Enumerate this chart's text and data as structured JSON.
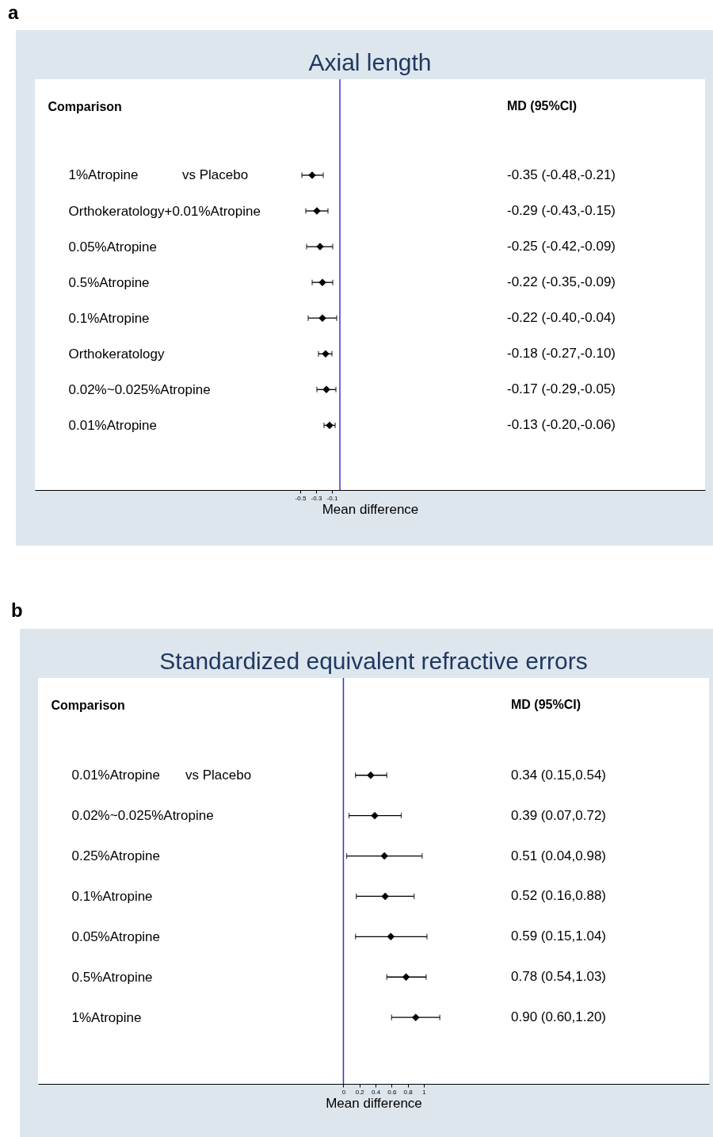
{
  "chart_data": [
    {
      "type": "scatter",
      "orientation": "horizontal",
      "title": "Axial length",
      "xlabel": "Mean difference",
      "ylabel": "Comparison",
      "color": "#000000",
      "marker": "diamond",
      "grid": false,
      "categories": [
        "1%Atropine",
        "Orthokeratology+0.01%Atropine",
        "0.05%Atropine",
        "0.5%Atropine",
        "0.1%Atropine",
        "Orthokeratology",
        "0.02%~0.025%Atropine",
        "0.01%Atropine"
      ],
      "values": [
        -0.35,
        -0.29,
        -0.25,
        -0.22,
        -0.22,
        -0.18,
        -0.17,
        -0.13
      ],
      "errors": [
        [
          -0.48,
          -0.21
        ],
        [
          -0.43,
          -0.15
        ],
        [
          -0.42,
          -0.09
        ],
        [
          -0.35,
          -0.09
        ],
        [
          -0.4,
          -0.04
        ],
        [
          -0.27,
          -0.1
        ],
        [
          -0.29,
          -0.05
        ],
        [
          -0.2,
          -0.06
        ]
      ],
      "xlim": [
        -3.85,
        4.61
      ],
      "xticks": [
        -0.5,
        -0.3,
        -0.1
      ],
      "ref_lines": [
        {
          "axis": "x",
          "value": 0,
          "color": "#3333cc"
        }
      ],
      "annotations": [
        "a",
        "MD (95%CI)",
        "vs Placebo",
        "-0.35 (-0.48,-0.21)",
        "-0.29 (-0.43,-0.15)",
        "-0.25 (-0.42,-0.09)",
        "-0.22 (-0.35,-0.09)",
        "-0.22 (-0.40,-0.04)",
        "-0.18 (-0.27,-0.10)",
        "-0.17 (-0.29,-0.05)",
        "-0.13 (-0.20,-0.06)"
      ]
    },
    {
      "type": "scatter",
      "orientation": "horizontal",
      "title": "Standardized equivalent refractive errors",
      "xlabel": "Mean difference",
      "ylabel": "Comparison",
      "color": "#000000",
      "marker": "diamond",
      "grid": false,
      "categories": [
        "0.01%Atropine",
        "0.02%~0.025%Atropine",
        "0.25%Atropine",
        "0.1%Atropine",
        "0.05%Atropine",
        "0.5%Atropine",
        "1%Atropine"
      ],
      "values": [
        0.34,
        0.39,
        0.51,
        0.52,
        0.59,
        0.78,
        0.9
      ],
      "errors": [
        [
          0.15,
          0.54
        ],
        [
          0.07,
          0.72
        ],
        [
          0.04,
          0.98
        ],
        [
          0.16,
          0.88
        ],
        [
          0.15,
          1.04
        ],
        [
          0.54,
          1.03
        ],
        [
          0.6,
          1.2
        ]
      ],
      "xlim": [
        -3.8,
        4.55
      ],
      "xticks": [
        0,
        0.2,
        0.4,
        0.6,
        0.8,
        1
      ],
      "ref_lines": [
        {
          "axis": "x",
          "value": 0,
          "color": "#3333cc"
        }
      ],
      "annotations": [
        "b",
        "MD (95%CI)",
        "vs Placebo",
        "0.34 (0.15,0.54)",
        "0.39 (0.07,0.72)",
        "0.51 (0.04,0.98)",
        "0.52 (0.16,0.88)",
        "0.59 (0.15,1.04)",
        "0.78 (0.54,1.03)",
        "0.90 (0.60,1.20)"
      ]
    }
  ]
}
